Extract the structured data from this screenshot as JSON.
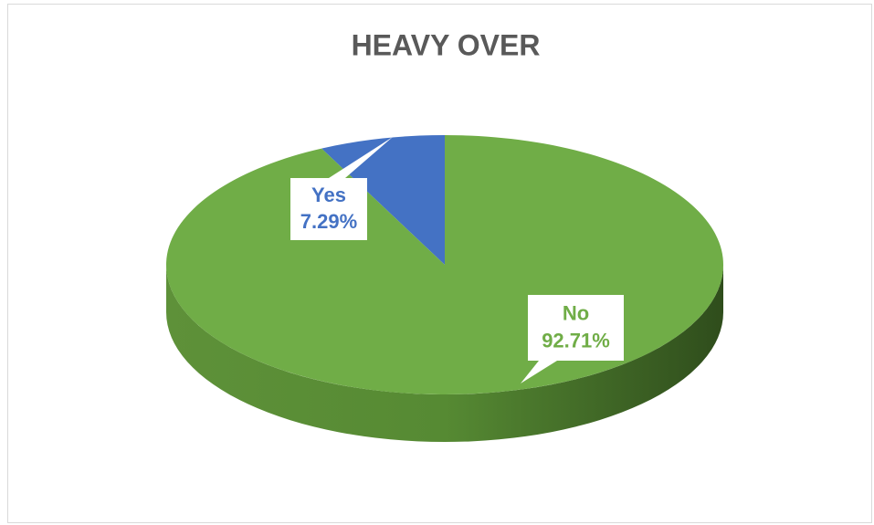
{
  "chart_data": {
    "type": "pie",
    "title": "HEAVY OVER",
    "categories": [
      "Yes",
      "No"
    ],
    "values": [
      7.29,
      92.71
    ],
    "value_labels": [
      "7.29%",
      "92.71%"
    ],
    "colors": [
      "#4472c4",
      "#70ad47"
    ]
  }
}
